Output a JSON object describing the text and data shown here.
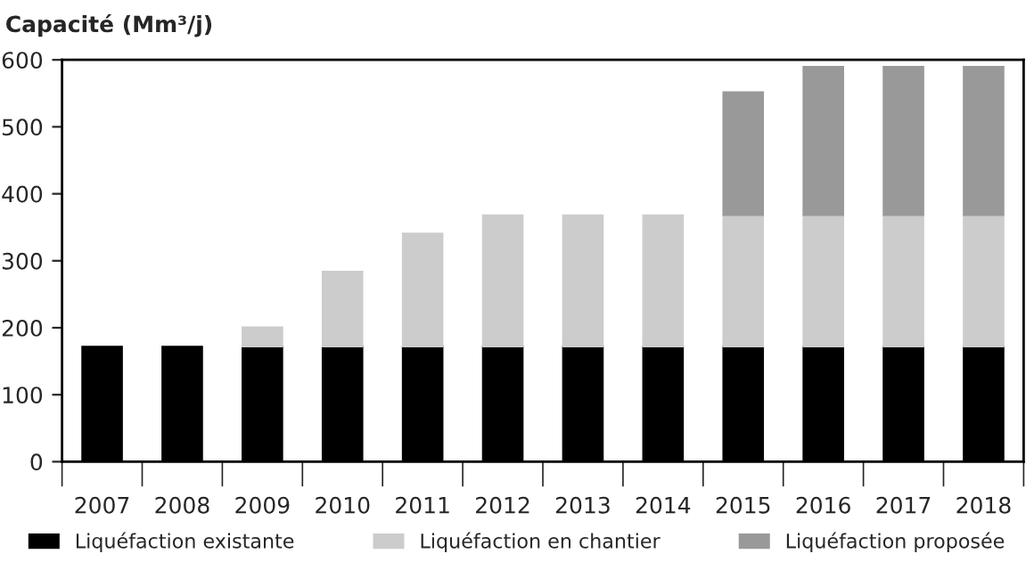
{
  "chart_data": {
    "type": "bar",
    "stacked": true,
    "title": "Capacité (Mm³/j)",
    "categories": [
      "2007",
      "2008",
      "2009",
      "2010",
      "2011",
      "2012",
      "2013",
      "2014",
      "2015",
      "2016",
      "2017",
      "2018"
    ],
    "series": [
      {
        "name": "Liquéfaction existante",
        "color": "#000000",
        "values": [
          172,
          172,
          172,
          172,
          172,
          172,
          172,
          172,
          172,
          172,
          172,
          172
        ]
      },
      {
        "name": "Liquéfaction en chantier",
        "color": "#cccccc",
        "values": [
          null,
          null,
          29,
          112,
          169,
          196,
          196,
          196,
          196,
          196,
          196,
          196
        ]
      },
      {
        "name": "Liquéfaction proposée",
        "color": "#999999",
        "values": [
          null,
          null,
          null,
          null,
          null,
          null,
          null,
          null,
          184,
          222,
          222,
          222
        ]
      }
    ],
    "ylim": [
      0,
      600
    ],
    "yticks": [
      0,
      100,
      200,
      300,
      400,
      500,
      600
    ],
    "grid": false,
    "legend": "bottom"
  }
}
